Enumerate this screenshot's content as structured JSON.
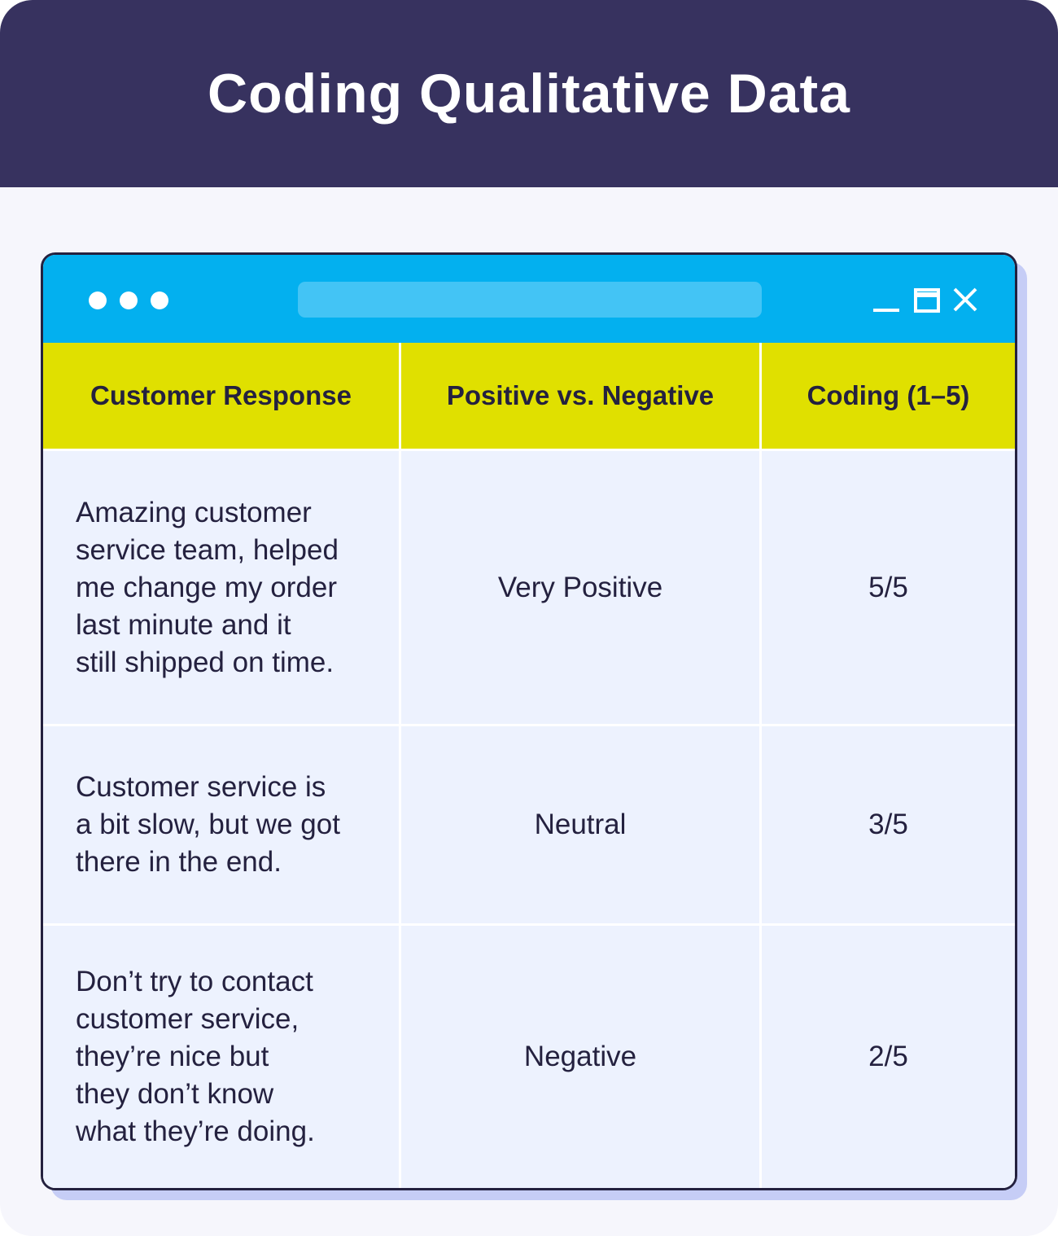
{
  "header": {
    "title": "Coding Qualitative Data"
  },
  "table": {
    "columns": [
      "Customer Response",
      "Positive vs. Negative",
      "Coding (1–5)"
    ],
    "rows": [
      [
        [
          "Amazing customer",
          "service team, helped",
          "me change my order",
          "last minute and it",
          "still shipped on time."
        ],
        "Very Positive",
        "5/5"
      ],
      [
        [
          "Customer service is",
          "a bit slow, but we got",
          "there in the end."
        ],
        "Neutral",
        "3/5"
      ],
      [
        [
          "Don’t try to contact",
          "customer service,",
          "they’re nice but",
          "they don’t know",
          "what they’re doing."
        ],
        "Negative",
        "2/5"
      ]
    ]
  }
}
